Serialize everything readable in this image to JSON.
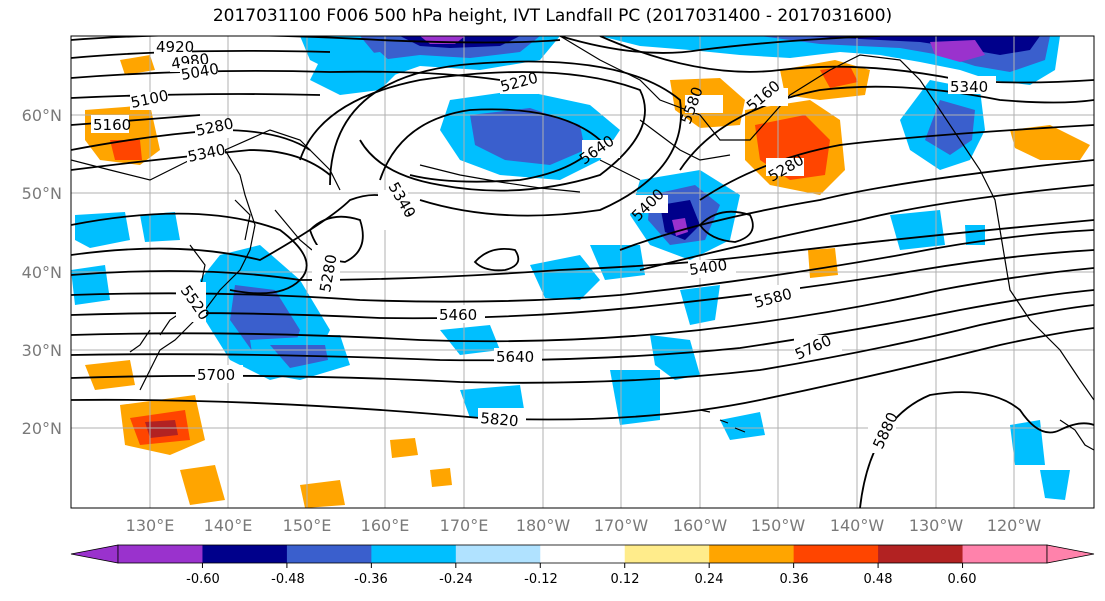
{
  "title": "2017031100 F006 500 hPa height, IVT Landfall PC (2017031400 - 2017031600)",
  "lat_labels": [
    "60°N",
    "50°N",
    "40°N",
    "30°N",
    "20°N"
  ],
  "lon_labels": [
    "130°E",
    "140°E",
    "150°E",
    "160°E",
    "170°E",
    "180°W",
    "170°W",
    "160°W",
    "150°W",
    "140°W",
    "130°W",
    "120°W"
  ],
  "contour_labels": [
    "4920",
    "4980",
    "5040",
    "5100",
    "5160",
    "5280",
    "5340",
    "5220",
    "5580",
    "5640",
    "5400",
    "5160",
    "5280",
    "5340",
    "5340",
    "5280",
    "5520",
    "5400",
    "5460",
    "5580",
    "5640",
    "5760",
    "5700",
    "5820",
    "5880"
  ],
  "colorbar": {
    "colors": [
      "#9a32cd",
      "#00008b",
      "#3a5fcd",
      "#00bfff",
      "#b0e2ff",
      "#ffffff",
      "#ffec8b",
      "#ffa500",
      "#ff4500",
      "#b22222",
      "#ff82ab"
    ],
    "tick_labels": [
      "-0.60",
      "-0.48",
      "-0.36",
      "-0.24",
      "-0.12",
      "0.12",
      "0.24",
      "0.36",
      "0.48",
      "0.60"
    ]
  },
  "colors": {
    "grid": "#b0b0b0",
    "contour": "#000000",
    "coast": "#000000"
  }
}
